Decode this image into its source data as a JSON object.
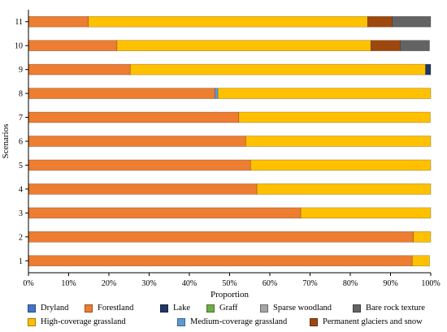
{
  "chart_data": {
    "type": "bar",
    "orientation": "horizontal",
    "stacked": true,
    "xlabel": "Proportion",
    "ylabel": "Scenarios",
    "xlim": [
      0,
      100
    ],
    "x_tick_labels": [
      "0%",
      "10%",
      "20%",
      "30%",
      "40%",
      "50%",
      "60%",
      "70%",
      "80%",
      "90%",
      "100%"
    ],
    "categories": [
      "1",
      "2",
      "3",
      "4",
      "5",
      "6",
      "7",
      "8",
      "9",
      "10",
      "11"
    ],
    "grid": false,
    "legend_position": "bottom",
    "series": [
      {
        "name": "Dryland",
        "color": "#4472c4",
        "values": [
          0,
          0,
          0,
          0,
          0,
          0,
          0,
          0,
          0,
          0,
          0
        ]
      },
      {
        "name": "Forestland",
        "color": "#ed7d31",
        "values": [
          95.4,
          95.7,
          67.7,
          56.8,
          55.2,
          54.0,
          52.3,
          46.4,
          25.3,
          22.0,
          14.9
        ]
      },
      {
        "name": "Lake",
        "color": "#203864",
        "values": [
          0,
          0,
          0,
          0,
          0,
          0,
          0,
          0,
          1.3,
          0,
          0
        ]
      },
      {
        "name": "Graff",
        "color": "#70ad47",
        "values": [
          0,
          0,
          0,
          0,
          0,
          0,
          0,
          0,
          0,
          0,
          0
        ]
      },
      {
        "name": "Sparse woodland",
        "color": "#a5a5a5",
        "values": [
          0,
          0,
          0,
          0,
          0,
          0,
          0,
          0,
          0,
          0,
          0
        ]
      },
      {
        "name": "Bare rock texture",
        "color": "#636363",
        "values": [
          0,
          0,
          0,
          0,
          0,
          0,
          0,
          0,
          0,
          7.3,
          9.6
        ]
      },
      {
        "name": "High-coverage grassland",
        "color": "#ffc000",
        "values": [
          4.3,
          4.3,
          32.3,
          43.2,
          44.8,
          46.0,
          47.6,
          52.9,
          73.4,
          63.1,
          69.4
        ]
      },
      {
        "name": "Medium-coverage grassland",
        "color": "#5b9bd5",
        "values": [
          0,
          0,
          0,
          0,
          0,
          0,
          0,
          0.7,
          0,
          0,
          0
        ]
      },
      {
        "name": "Permanent glaciers and snow",
        "color": "#9e480e",
        "values": [
          0,
          0,
          0,
          0,
          0,
          0,
          0,
          0,
          0,
          7.3,
          6.1
        ]
      }
    ],
    "stack_order": [
      "Forestland",
      "Medium-coverage grassland",
      "High-coverage grassland",
      "Lake",
      "Permanent glaciers and snow",
      "Bare rock texture",
      "Dryland",
      "Graff",
      "Sparse woodland"
    ]
  }
}
